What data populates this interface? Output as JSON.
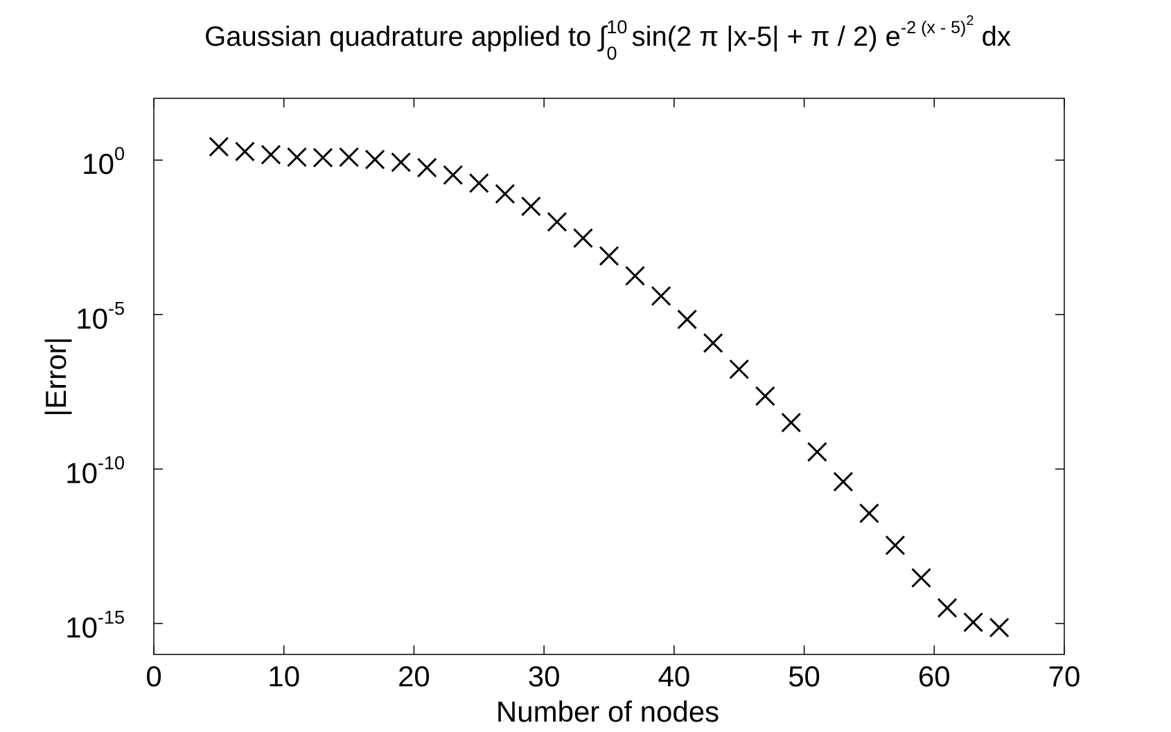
{
  "chart_data": {
    "type": "scatter",
    "title": [
      "Gaussian quadrature applied to ∫",
      "10",
      "0",
      " sin(2 π |x-5| + π / 2) e",
      "-2 (x - 5)",
      "2",
      " dx"
    ],
    "x_label": "Number of nodes",
    "y_label": "|Error|",
    "log_y": true,
    "grid": false,
    "marker": "x",
    "color": "#000000",
    "xlim": [
      0,
      70
    ],
    "xticks": [
      0,
      10,
      20,
      30,
      40,
      50,
      60,
      70
    ],
    "ylim": [
      1e-16,
      100
    ],
    "yticks": [
      {
        "value": 1,
        "label": "10",
        "exponent": "0"
      },
      {
        "value": 1e-05,
        "label": "10",
        "exponent": "-5"
      },
      {
        "value": 1e-10,
        "label": "10",
        "exponent": "-10"
      },
      {
        "value": 1e-15,
        "label": "10",
        "exponent": "-15"
      }
    ],
    "x": [
      5,
      7,
      9,
      11,
      13,
      15,
      17,
      19,
      21,
      23,
      25,
      27,
      29,
      31,
      33,
      35,
      37,
      39,
      41,
      43,
      45,
      47,
      49,
      51,
      53,
      55,
      57,
      59,
      61,
      63,
      65
    ],
    "values": [
      2.7,
      1.9,
      1.5,
      1.25,
      1.2,
      1.25,
      1.05,
      0.85,
      0.57,
      0.33,
      0.18,
      0.081,
      0.032,
      0.01,
      0.003,
      0.00079,
      0.00018,
      4e-05,
      7e-06,
      1.2e-06,
      1.7e-07,
      2.3e-08,
      3.2e-09,
      3.6e-10,
      3.9e-11,
      3.7e-12,
      3.4e-13,
      3e-14,
      3.2e-15,
      1.1e-15,
      7.4e-16
    ]
  }
}
